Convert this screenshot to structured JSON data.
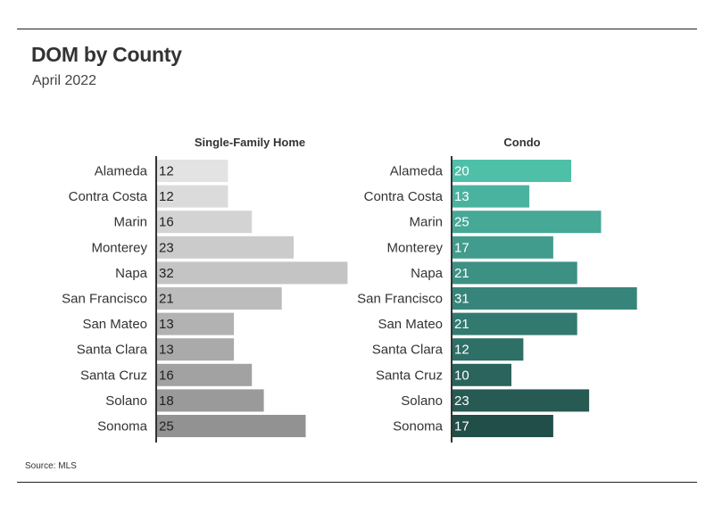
{
  "title": "DOM by County",
  "subtitle": "April 2022",
  "source": "Source: MLS",
  "chart_data": [
    {
      "type": "bar",
      "orientation": "horizontal",
      "title": "Single-Family Home",
      "categories": [
        "Alameda",
        "Contra Costa",
        "Marin",
        "Monterey",
        "Napa",
        "San Francisco",
        "San Mateo",
        "Santa Clara",
        "Santa Cruz",
        "Solano",
        "Sonoma"
      ],
      "values": [
        12,
        12,
        16,
        23,
        32,
        21,
        13,
        13,
        16,
        18,
        25
      ],
      "colors": [
        "#e3e3e3",
        "#dbdbdb",
        "#d3d3d3",
        "#cbcbcb",
        "#c4c4c4",
        "#bcbcbc",
        "#b2b2b2",
        "#aaaaaa",
        "#a2a2a2",
        "#9a9a9a",
        "#929292"
      ],
      "label_color": "#222222",
      "data_labels": true
    },
    {
      "type": "bar",
      "orientation": "horizontal",
      "title": "Condo",
      "categories": [
        "Alameda",
        "Contra Costa",
        "Marin",
        "Monterey",
        "Napa",
        "San Francisco",
        "San Mateo",
        "Santa Clara",
        "Santa Cruz",
        "Solano",
        "Sonoma"
      ],
      "values": [
        20,
        13,
        25,
        17,
        21,
        31,
        21,
        12,
        10,
        23,
        17
      ],
      "colors": [
        "#4fc0a8",
        "#4ab3a0",
        "#46a897",
        "#419c8d",
        "#3c9184",
        "#37857a",
        "#327a70",
        "#2e6f66",
        "#2a645c",
        "#265a53",
        "#224e49"
      ],
      "label_color": "#ffffff",
      "data_labels": true
    }
  ]
}
